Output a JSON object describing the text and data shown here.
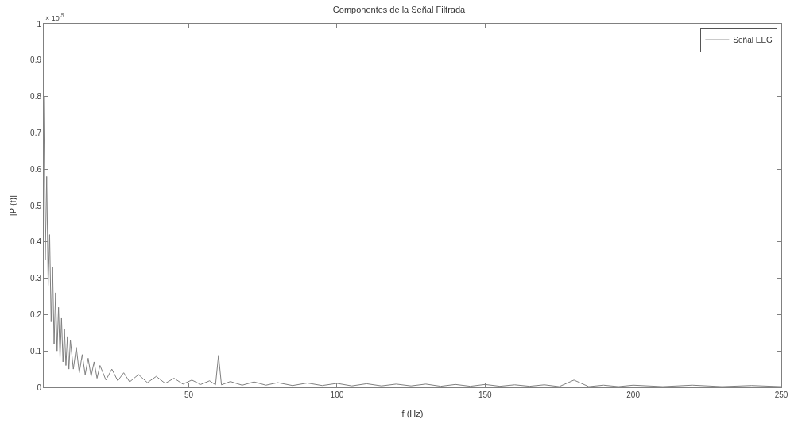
{
  "chart_data": {
    "type": "line",
    "title": "Componentes de la Señal Filtrada",
    "xlabel": "f (Hz)",
    "ylabel": "|P (f)|",
    "annotations": [
      "× 10$^{-5}$"
    ],
    "xlim": [
      1,
      250
    ],
    "xticks": [
      50,
      100,
      150,
      200,
      250
    ],
    "ylim": [
      0,
      1
    ],
    "yticks": [
      0,
      0.1,
      0.2,
      0.3,
      0.4,
      0.5,
      0.6,
      0.7,
      0.8,
      0.9,
      1
    ],
    "legend": "top right",
    "marker": "none",
    "line_style": "solid",
    "series": [
      {
        "name": "Señal EEG",
        "color": "#808080",
        "x": [
          1,
          1.5,
          2,
          2.5,
          3,
          3.5,
          4,
          4.5,
          5,
          5.5,
          6,
          6.5,
          7,
          7.5,
          8,
          8.5,
          9,
          9.5,
          10,
          11,
          12,
          13,
          14,
          15,
          16,
          17,
          18,
          19,
          20,
          22,
          24,
          26,
          28,
          30,
          33,
          36,
          39,
          42,
          45,
          48,
          51,
          54,
          57,
          59,
          60,
          61,
          64,
          68,
          72,
          76,
          80,
          85,
          90,
          95,
          100,
          105,
          110,
          115,
          120,
          125,
          130,
          135,
          140,
          145,
          150,
          155,
          160,
          165,
          170,
          175,
          180,
          185,
          190,
          195,
          200,
          210,
          220,
          230,
          240,
          250
        ],
        "values": [
          0.8,
          0.35,
          0.58,
          0.28,
          0.42,
          0.18,
          0.33,
          0.12,
          0.26,
          0.1,
          0.22,
          0.08,
          0.19,
          0.07,
          0.16,
          0.06,
          0.14,
          0.05,
          0.13,
          0.05,
          0.11,
          0.04,
          0.09,
          0.035,
          0.08,
          0.03,
          0.07,
          0.025,
          0.06,
          0.02,
          0.05,
          0.018,
          0.04,
          0.015,
          0.035,
          0.013,
          0.03,
          0.011,
          0.025,
          0.009,
          0.02,
          0.008,
          0.018,
          0.007,
          0.088,
          0.007,
          0.016,
          0.006,
          0.015,
          0.006,
          0.013,
          0.005,
          0.012,
          0.005,
          0.011,
          0.004,
          0.01,
          0.004,
          0.009,
          0.004,
          0.009,
          0.003,
          0.008,
          0.003,
          0.008,
          0.003,
          0.007,
          0.003,
          0.007,
          0.002,
          0.02,
          0.002,
          0.006,
          0.002,
          0.006,
          0.002,
          0.006,
          0.002,
          0.005,
          0.002
        ]
      }
    ]
  }
}
